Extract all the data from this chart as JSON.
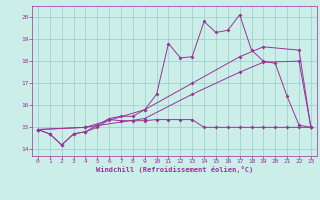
{
  "background_color": "#cceee8",
  "grid_color": "#99cccc",
  "line_color": "#993399",
  "marker": "D",
  "marker_size": 2,
  "xlabel": "Windchill (Refroidissement éolien,°C)",
  "xlim": [
    -0.5,
    23.5
  ],
  "ylim": [
    13.7,
    20.5
  ],
  "yticks": [
    14,
    15,
    16,
    17,
    18,
    19,
    20
  ],
  "xticks": [
    0,
    1,
    2,
    3,
    4,
    5,
    6,
    7,
    8,
    9,
    10,
    11,
    12,
    13,
    14,
    15,
    16,
    17,
    18,
    19,
    20,
    21,
    22,
    23
  ],
  "series1_x": [
    0,
    1,
    2,
    3,
    4,
    5,
    6,
    7,
    8,
    9,
    10,
    11,
    12,
    13,
    14,
    15,
    16,
    17,
    18,
    19,
    20,
    21,
    22,
    23
  ],
  "series1_y": [
    14.9,
    14.7,
    14.2,
    14.7,
    14.8,
    15.0,
    15.35,
    15.3,
    15.3,
    15.3,
    15.35,
    15.35,
    15.35,
    15.35,
    15.0,
    15.0,
    15.0,
    15.0,
    15.0,
    15.0,
    15.0,
    15.0,
    15.0,
    15.0
  ],
  "series2_x": [
    0,
    1,
    2,
    3,
    4,
    5,
    6,
    7,
    8,
    9,
    10,
    11,
    12,
    13,
    14,
    15,
    16,
    17,
    18,
    19,
    20,
    21,
    22,
    23
  ],
  "series2_y": [
    14.9,
    14.7,
    14.2,
    14.7,
    14.8,
    15.1,
    15.4,
    15.5,
    15.5,
    15.8,
    16.5,
    18.8,
    18.15,
    18.2,
    19.8,
    19.3,
    19.4,
    20.1,
    18.5,
    18.0,
    17.9,
    16.4,
    15.1,
    15.0
  ],
  "series3_x": [
    0,
    4,
    9,
    13,
    17,
    19,
    22,
    23
  ],
  "series3_y": [
    14.9,
    15.0,
    15.4,
    16.5,
    17.5,
    17.95,
    18.0,
    15.0
  ],
  "series4_x": [
    0,
    4,
    9,
    13,
    17,
    19,
    22,
    23
  ],
  "series4_y": [
    14.9,
    15.0,
    15.8,
    17.0,
    18.2,
    18.65,
    18.5,
    15.0
  ]
}
